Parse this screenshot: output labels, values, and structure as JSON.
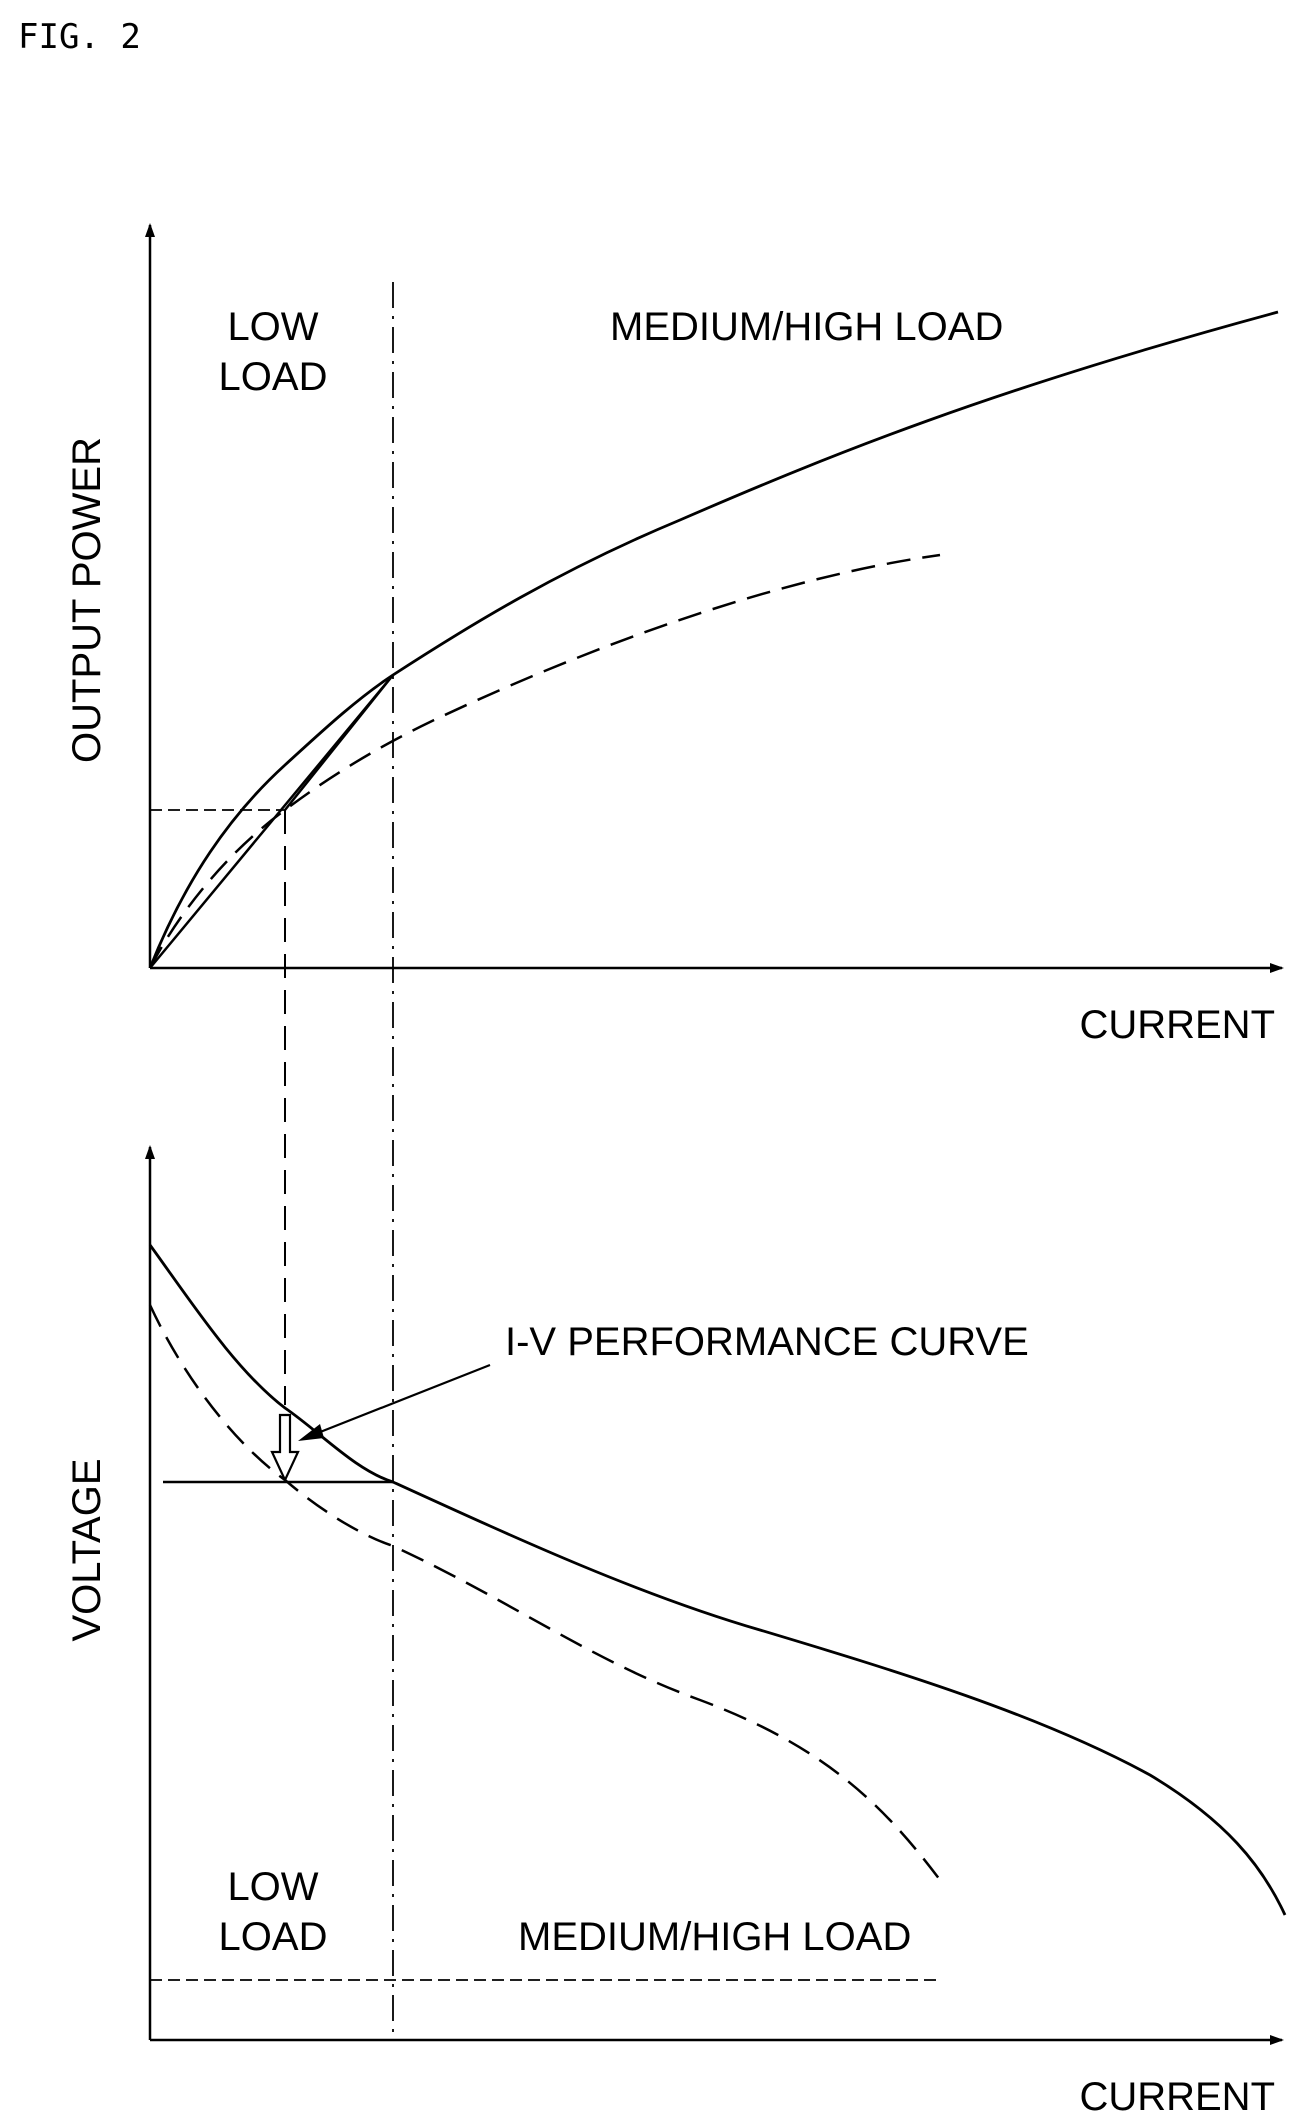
{
  "figure_label": "FIG. 2",
  "top_graph": {
    "y_axis_label": "OUTPUT POWER",
    "x_axis_label": "CURRENT",
    "region_low_line1": "LOW",
    "region_low_line2": "LOAD",
    "region_high": "MEDIUM/HIGH LOAD"
  },
  "bottom_graph": {
    "y_axis_label": "VOLTAGE",
    "x_axis_label": "CURRENT",
    "region_low_line1": "LOW",
    "region_low_line2": "LOAD",
    "region_high": "MEDIUM/HIGH LOAD",
    "callout": "I-V PERFORMANCE CURVE"
  }
}
